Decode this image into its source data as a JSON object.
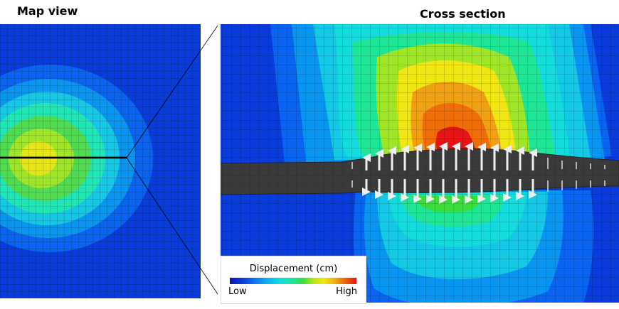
{
  "titles": {
    "map_view": "Map view",
    "cross_section": "Cross section"
  },
  "legend": {
    "title": "Displacement (cm)",
    "low": "Low",
    "high": "High"
  },
  "colors": {
    "background_blue": "#0a3cdc",
    "deep_blue": "#0a14b4",
    "blue": "#0a78f0",
    "cyan": "#14dcdc",
    "green": "#3cdc3c",
    "yellow": "#f0e614",
    "orange": "#f06e0a",
    "red": "#e61414",
    "source_layer": "#3c3c3c",
    "arrows": "#e8e8e8"
  }
}
